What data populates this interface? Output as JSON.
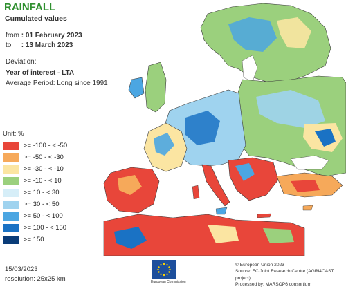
{
  "title": "RAINFALL",
  "subtitle": "Cumulated values",
  "period": {
    "from_label": "from",
    "from_value": ": 01 February 2023",
    "to_label": "to",
    "to_value": ": 13 March 2023"
  },
  "deviation": {
    "label": "Deviation:",
    "value": "Year of interest - LTA",
    "average": "Average Period: Long since 1991"
  },
  "legend": {
    "unit": "Unit:  %",
    "items": [
      {
        "label": ">= -100 - < -50",
        "color": "#e8463a"
      },
      {
        "label": ">= -50 - < -30",
        "color": "#f6a95a"
      },
      {
        "label": ">= -30 - < -10",
        "color": "#fbe5a2"
      },
      {
        "label": ">= -10 - < 10",
        "color": "#9bd07d"
      },
      {
        "label": ">= 10 - < 30",
        "color": "#d6eef8"
      },
      {
        "label": ">= 30 - < 50",
        "color": "#9fd3ef"
      },
      {
        "label": ">= 50 - < 100",
        "color": "#4ba6e2"
      },
      {
        "label": ">= 100 - < 150",
        "color": "#1a72c4"
      },
      {
        "label": ">= 150",
        "color": "#0a3c78"
      }
    ]
  },
  "footer": {
    "date": "15/03/2023",
    "resolution": "resolution: 25x25 km",
    "eu_caption": "European Commission",
    "credits": [
      "© European Union 2023",
      "Source: EC Joint Research Centre (AGRI4CAST project)",
      "Processed by: MARSOP6 consortium"
    ]
  },
  "colors": {
    "sea": "#ffffff",
    "border": "#3a3a3a",
    "title": "#2f8f2f"
  }
}
